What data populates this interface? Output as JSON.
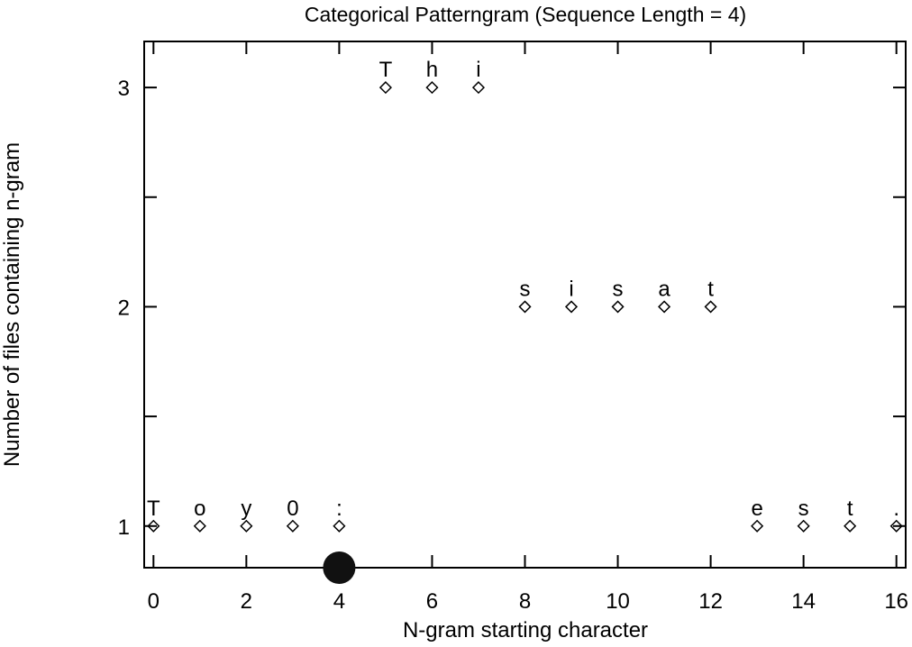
{
  "chart_data": {
    "type": "scatter",
    "title": "Categorical Patterngram (Sequence Length = 4)",
    "xlabel": "N-gram starting character",
    "ylabel": "Number of files containing n-gram",
    "xlim": [
      -0.2,
      16.2
    ],
    "ylim": [
      0.81,
      3.21
    ],
    "xticks": [
      "0",
      "2",
      "4",
      "6",
      "8",
      "10",
      "12",
      "14",
      "16"
    ],
    "yticks": [
      "1",
      "2",
      "3"
    ],
    "grid": false,
    "legend": "none",
    "marker": "diamond",
    "points": [
      {
        "x": 0,
        "y": 1,
        "label": "T"
      },
      {
        "x": 1,
        "y": 1,
        "label": "o"
      },
      {
        "x": 2,
        "y": 1,
        "label": "y"
      },
      {
        "x": 3,
        "y": 1,
        "label": "0"
      },
      {
        "x": 4,
        "y": 1,
        "label": ":"
      },
      {
        "x": 5,
        "y": 3,
        "label": "T"
      },
      {
        "x": 6,
        "y": 3,
        "label": "h"
      },
      {
        "x": 7,
        "y": 3,
        "label": "i"
      },
      {
        "x": 8,
        "y": 2,
        "label": "s"
      },
      {
        "x": 9,
        "y": 2,
        "label": "i"
      },
      {
        "x": 10,
        "y": 2,
        "label": "s"
      },
      {
        "x": 11,
        "y": 2,
        "label": "a"
      },
      {
        "x": 12,
        "y": 2,
        "label": "t"
      },
      {
        "x": 13,
        "y": 1,
        "label": "e"
      },
      {
        "x": 14,
        "y": 1,
        "label": "s"
      },
      {
        "x": 15,
        "y": 1,
        "label": "t"
      },
      {
        "x": 16,
        "y": 1,
        "label": "."
      }
    ],
    "cursor_marker": {
      "x": 4
    }
  }
}
